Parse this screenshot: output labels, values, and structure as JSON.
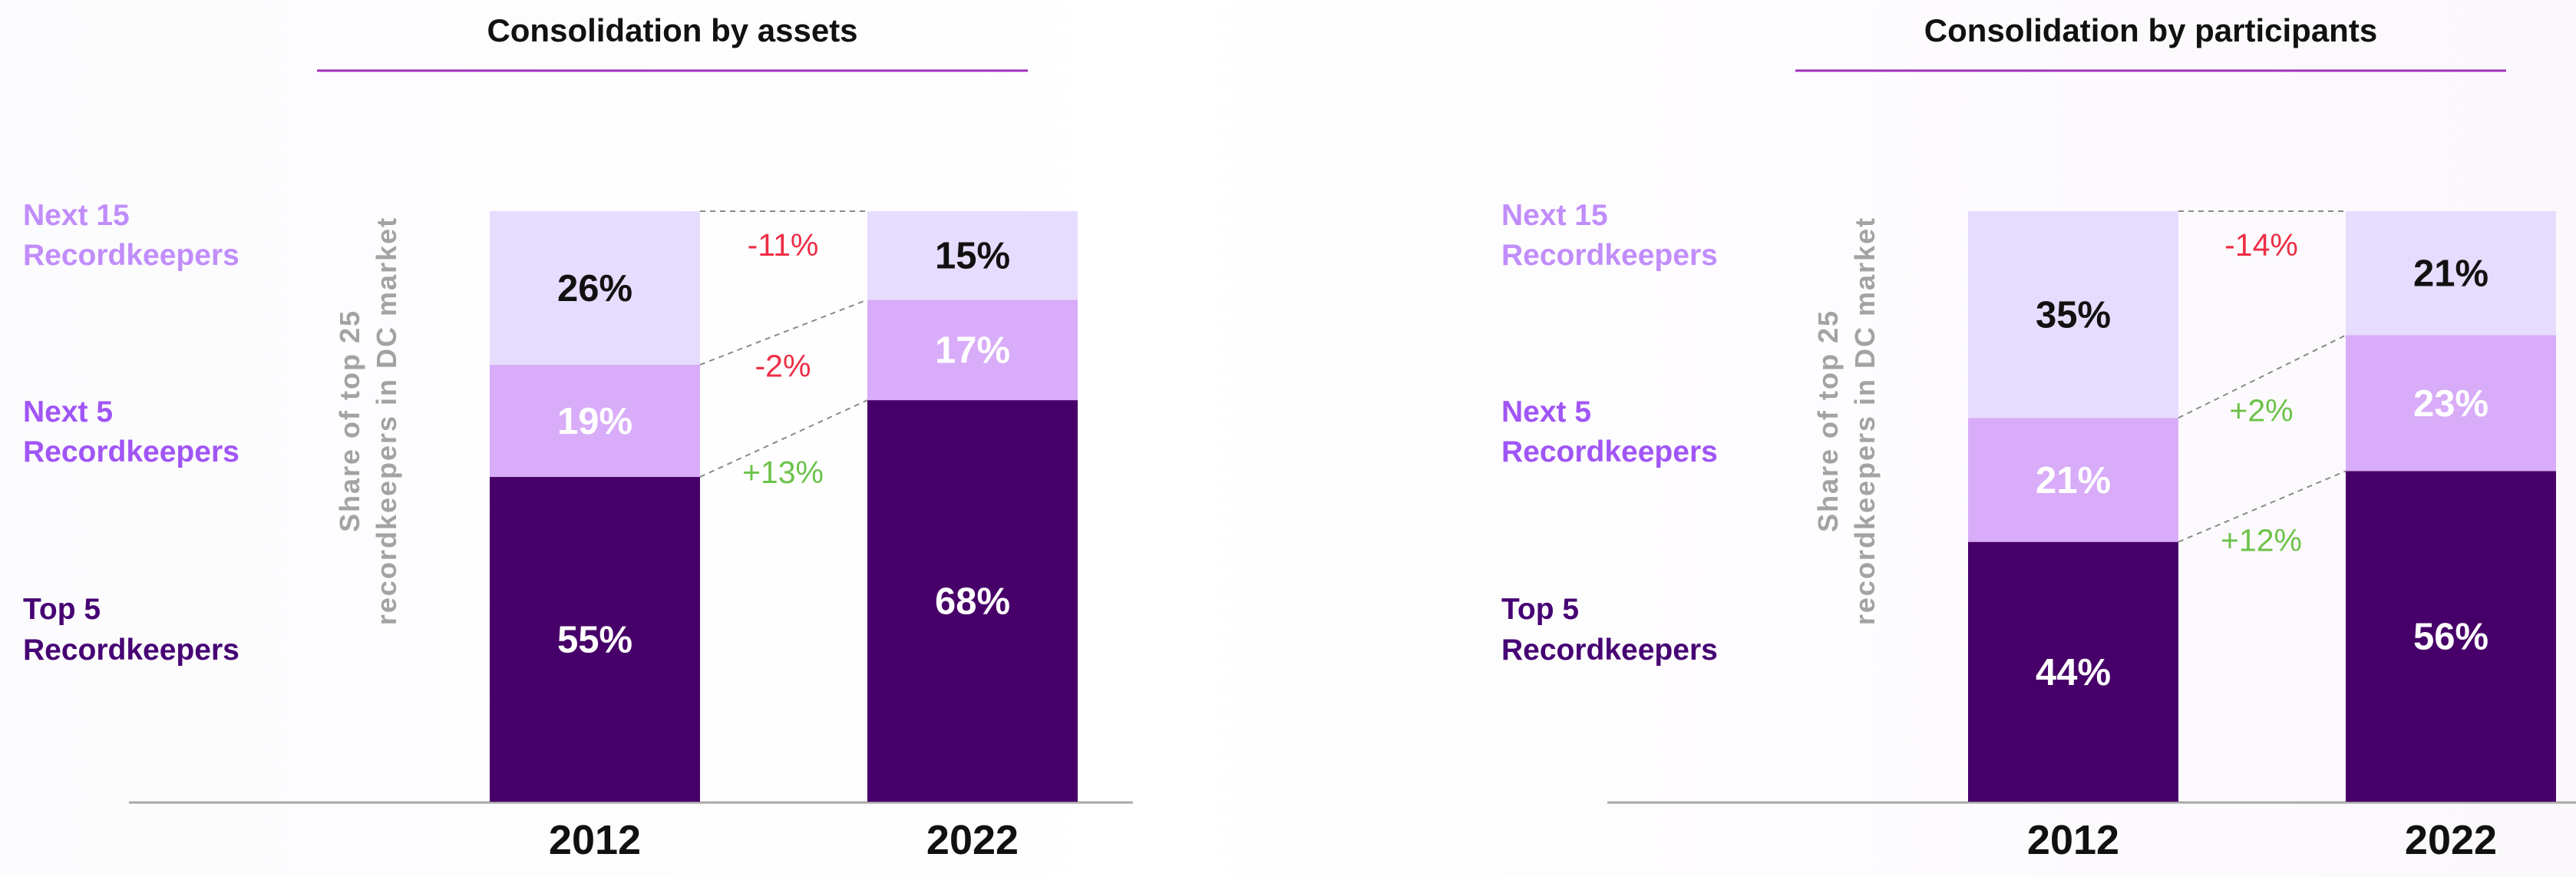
{
  "chart_data": [
    {
      "type": "bar",
      "stacked": true,
      "title": "Consolidation by assets",
      "ylabel": [
        "Share of top 25",
        "recordkeepers in DC market"
      ],
      "categories": [
        "2012",
        "2022"
      ],
      "ylim": [
        0,
        100
      ],
      "series": [
        {
          "name": "Top 5 Recordkeepers",
          "legend_lines": [
            "Top 5",
            "Recordkeepers"
          ],
          "color": "#470069",
          "label_color": "#ffffff",
          "values": [
            55,
            68
          ],
          "labels": [
            "55%",
            "68%"
          ]
        },
        {
          "name": "Next 5 Recordkeepers",
          "legend_lines": [
            "Next 5",
            "Recordkeepers"
          ],
          "color": "#d8acf8",
          "label_color": "#ffffff",
          "values": [
            19,
            17
          ],
          "labels": [
            "19%",
            "17%"
          ]
        },
        {
          "name": "Next 15 Recordkeepers",
          "legend_lines": [
            "Next 15",
            "Recordkeepers"
          ],
          "color": "#e6dcfe",
          "label_color": "#111111",
          "values": [
            26,
            15
          ],
          "labels": [
            "26%",
            "15%"
          ]
        }
      ],
      "changes": [
        {
          "series": "Top 5 Recordkeepers",
          "label": "+13%"
        },
        {
          "series": "Next 5 Recordkeepers",
          "label": "-2%"
        },
        {
          "series": "Next 15 Recordkeepers",
          "label": "-11%"
        }
      ],
      "legend_colors": [
        "#460073",
        "#a055f5",
        "#c18dfa"
      ],
      "increase_color": "#6cc24a",
      "decrease_color": "#ee2e46"
    },
    {
      "type": "bar",
      "stacked": true,
      "title": "Consolidation by participants",
      "ylabel": [
        "Share of top 25",
        "recordkeepers in DC market"
      ],
      "categories": [
        "2012",
        "2022"
      ],
      "ylim": [
        0,
        100
      ],
      "series": [
        {
          "name": "Top 5 Recordkeepers",
          "legend_lines": [
            "Top 5",
            "Recordkeepers"
          ],
          "color": "#470069",
          "label_color": "#ffffff",
          "values": [
            44,
            56
          ],
          "labels": [
            "44%",
            "56%"
          ]
        },
        {
          "name": "Next 5 Recordkeepers",
          "legend_lines": [
            "Next 5",
            "Recordkeepers"
          ],
          "color": "#d8acf8",
          "label_color": "#ffffff",
          "values": [
            21,
            23
          ],
          "labels": [
            "21%",
            "23%"
          ]
        },
        {
          "name": "Next 15 Recordkeepers",
          "legend_lines": [
            "Next 15",
            "Recordkeepers"
          ],
          "color": "#e6dcfe",
          "label_color": "#111111",
          "values": [
            35,
            21
          ],
          "labels": [
            "35%",
            "21%"
          ]
        }
      ],
      "changes": [
        {
          "series": "Top 5 Recordkeepers",
          "label": "+12%"
        },
        {
          "series": "Next 5 Recordkeepers",
          "label": "+2%"
        },
        {
          "series": "Next 15 Recordkeepers",
          "label": "-14%"
        }
      ],
      "legend_colors": [
        "#460073",
        "#a055f5",
        "#c18dfa"
      ],
      "increase_color": "#6cc24a",
      "decrease_color": "#ee2e46"
    }
  ]
}
